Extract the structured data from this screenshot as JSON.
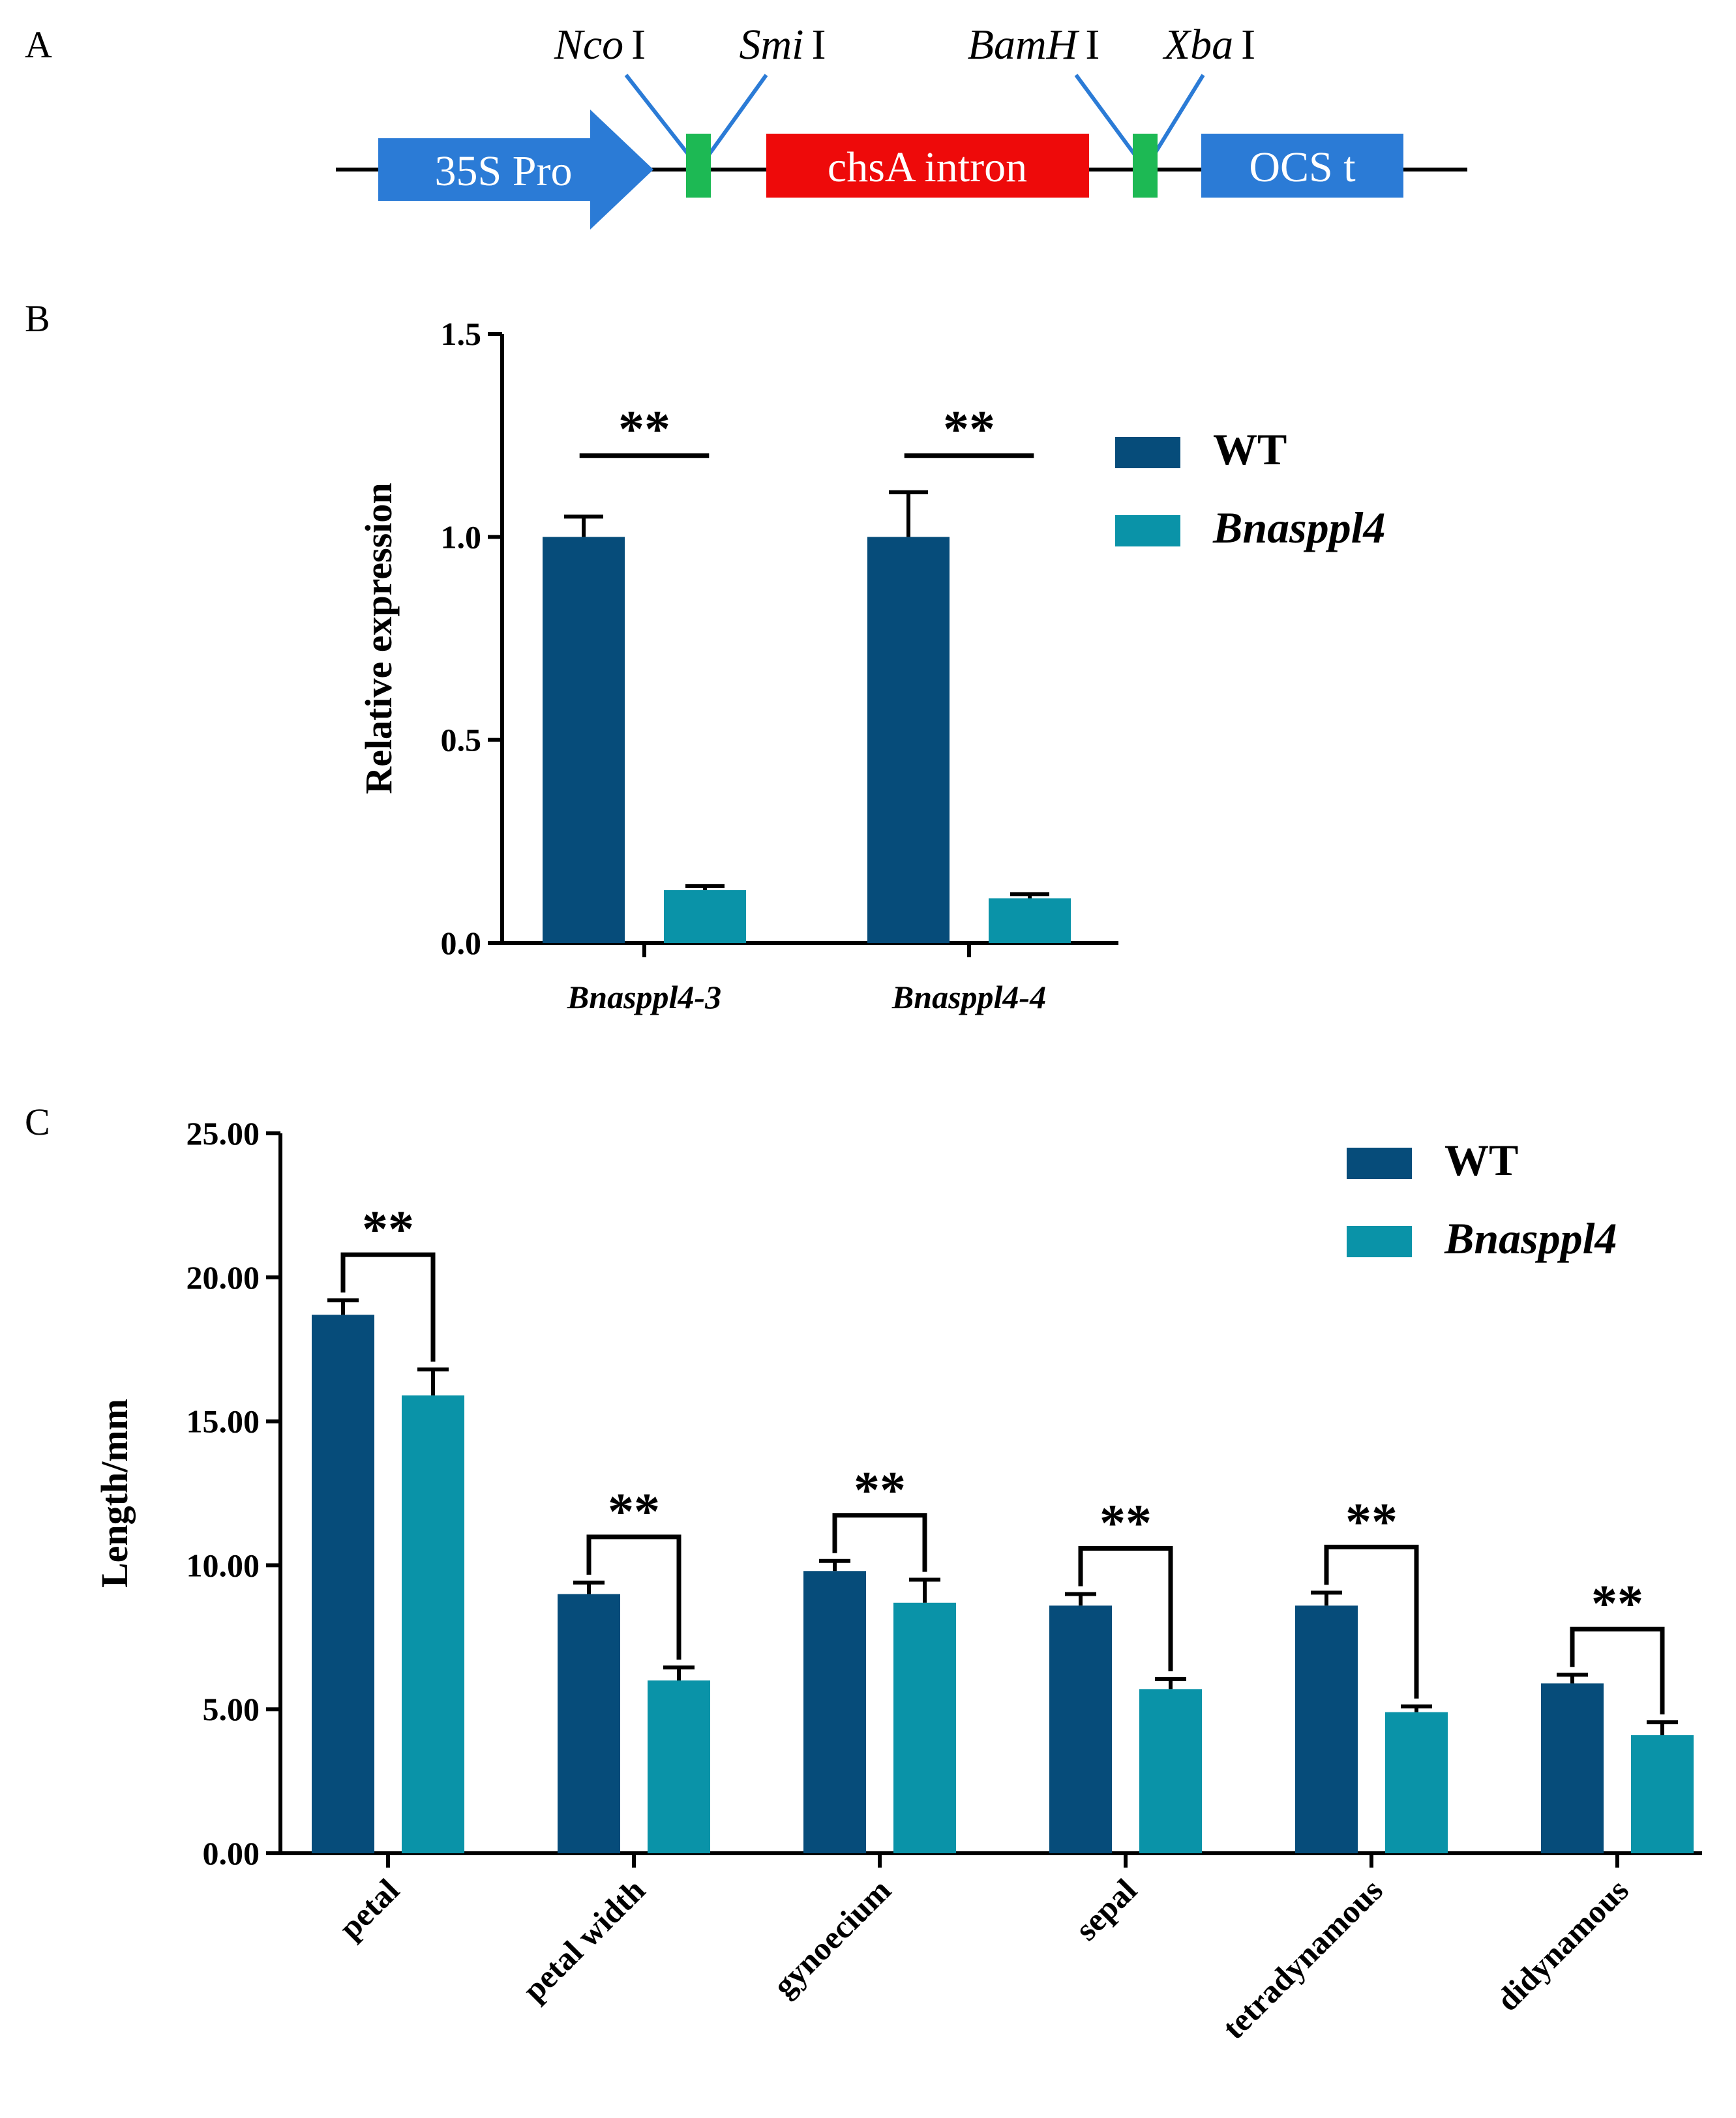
{
  "panel_a": {
    "letter": "A",
    "sites": [
      {
        "name": "Nco",
        "roman": "I"
      },
      {
        "name": "Smi",
        "roman": "I"
      },
      {
        "name": "BamH",
        "roman": "I"
      },
      {
        "name": "Xba",
        "roman": "I"
      }
    ],
    "blocks": {
      "promoter": "35S Pro",
      "intron": "chsA intron",
      "terminator": "OCS t"
    },
    "colors": {
      "promoter": "#2b7bd6",
      "intron": "#ee0a0a",
      "linker": "#1db954",
      "terminator": "#2b7bd6",
      "site_line": "#2b7bd6"
    }
  },
  "chart_data": [
    {
      "panel": "B",
      "type": "bar",
      "ylabel": "Relative expression",
      "xlabel": "",
      "ylim": [
        0,
        1.5
      ],
      "yticks": [
        "0.0",
        "0.5",
        "1.0",
        "1.5"
      ],
      "categories": [
        "Bnasppl4-3",
        "Bnasppl4-4"
      ],
      "series": [
        {
          "name": "WT",
          "color": "#064c7a",
          "values": [
            1.0,
            1.0
          ],
          "errors": [
            0.05,
            0.11
          ]
        },
        {
          "name": "Bnasppl4",
          "color": "#0a93a8",
          "values": [
            0.13,
            0.11
          ],
          "errors": [
            0.01,
            0.01
          ]
        }
      ],
      "significance": [
        "**",
        "**"
      ],
      "legend_position": "top-right",
      "grid": false
    },
    {
      "panel": "C",
      "type": "bar",
      "ylabel": "Length/mm",
      "xlabel": "",
      "ylim": [
        0,
        25
      ],
      "yticks": [
        "0.00",
        "5.00",
        "10.00",
        "15.00",
        "20.00",
        "25.00"
      ],
      "categories": [
        "petal",
        "petal width",
        "gynoecium",
        "sepal",
        "tetradynamous",
        "didynamous"
      ],
      "series": [
        {
          "name": "WT",
          "color": "#064c7a",
          "values": [
            18.7,
            9.0,
            9.8,
            8.6,
            8.6,
            5.9
          ],
          "errors": [
            0.5,
            0.4,
            0.35,
            0.4,
            0.45,
            0.3
          ]
        },
        {
          "name": "Bnasppl4",
          "color": "#0a93a8",
          "values": [
            15.9,
            6.0,
            8.7,
            5.7,
            4.9,
            4.1
          ],
          "errors": [
            0.9,
            0.45,
            0.8,
            0.35,
            0.2,
            0.45
          ]
        }
      ],
      "significance": [
        "**",
        "**",
        "**",
        "**",
        "**",
        "**"
      ],
      "legend_position": "top-right",
      "grid": false
    }
  ]
}
